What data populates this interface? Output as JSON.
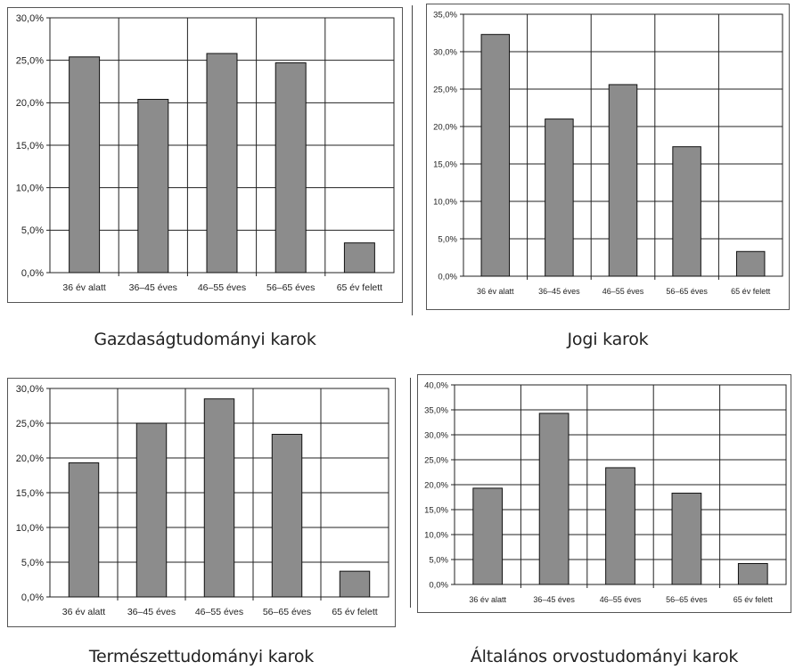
{
  "charts": [
    {
      "caption": "Gazdaságtudományi karok",
      "chart_data": {
        "type": "bar",
        "categories": [
          "36 év alatt",
          "36–45 éves",
          "46–55 éves",
          "56–65 éves",
          "65 év felett"
        ],
        "values": [
          25.4,
          20.4,
          25.8,
          24.7,
          3.5
        ],
        "ylim": [
          0,
          30
        ],
        "yticks": [
          "0,0%",
          "5,0%",
          "10,0%",
          "15,0%",
          "20,0%",
          "25,0%",
          "30,0%"
        ],
        "grid": true,
        "bar_color": "#8c8c8c"
      }
    },
    {
      "caption": "Jogi karok",
      "chart_data": {
        "type": "bar",
        "categories": [
          "36 év alatt",
          "36–45 éves",
          "46–55 éves",
          "56–65 éves",
          "65 év felett"
        ],
        "values": [
          32.3,
          21.0,
          25.6,
          17.3,
          3.3
        ],
        "ylim": [
          0,
          35
        ],
        "yticks": [
          "0,0%",
          "5,0%",
          "10,0%",
          "15,0%",
          "20,0%",
          "25,0%",
          "30,0%",
          "35,0%"
        ],
        "grid": true,
        "bar_color": "#8c8c8c"
      }
    },
    {
      "caption": "Természettudományi karok",
      "chart_data": {
        "type": "bar",
        "categories": [
          "36 év alatt",
          "36–45 éves",
          "46–55 éves",
          "56–65 éves",
          "65 év felett"
        ],
        "values": [
          19.3,
          25.0,
          28.5,
          23.4,
          3.7
        ],
        "ylim": [
          0,
          30
        ],
        "yticks": [
          "0,0%",
          "5,0%",
          "10,0%",
          "15,0%",
          "20,0%",
          "25,0%",
          "30,0%"
        ],
        "grid": true,
        "bar_color": "#8c8c8c"
      }
    },
    {
      "caption": "Általános orvostudományi karok",
      "chart_data": {
        "type": "bar",
        "categories": [
          "36 év alatt",
          "36–45 éves",
          "46–55 éves",
          "56–65 éves",
          "65 év felett"
        ],
        "values": [
          19.3,
          34.3,
          23.4,
          18.3,
          4.2
        ],
        "ylim": [
          0,
          40
        ],
        "yticks": [
          "0,0%",
          "5,0%",
          "10,0%",
          "15,0%",
          "20,0%",
          "25,0%",
          "30,0%",
          "35,0%",
          "40,0%"
        ],
        "grid": true,
        "bar_color": "#8c8c8c"
      }
    }
  ]
}
